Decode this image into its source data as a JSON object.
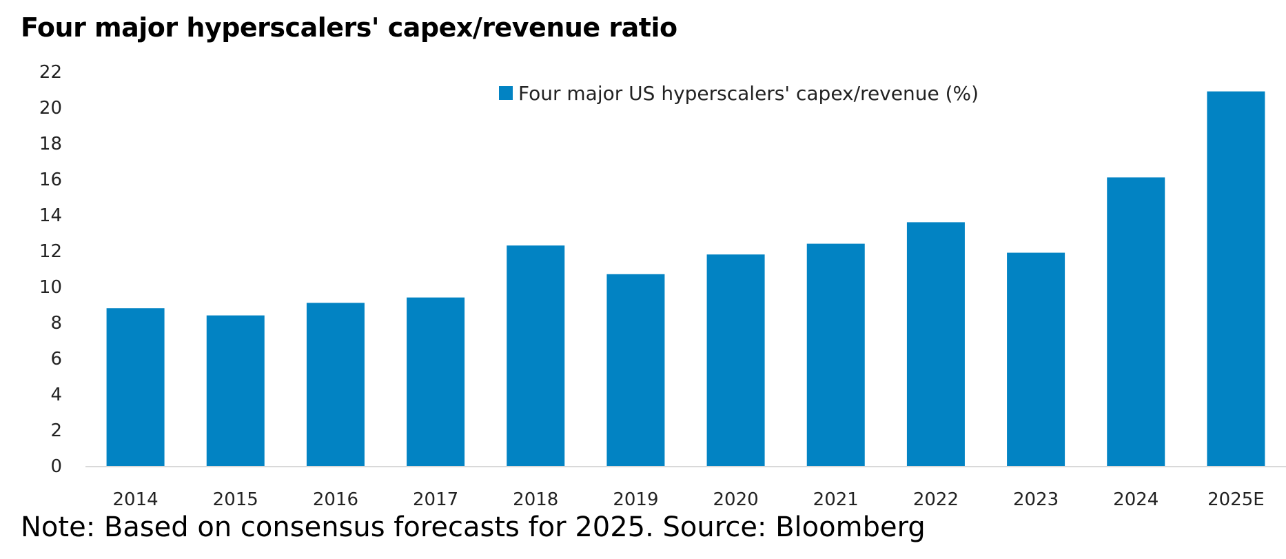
{
  "title": "Four major hyperscalers' capex/revenue ratio",
  "note": "Note: Based on consensus forecasts for 2025. Source: Bloomberg",
  "chart_data": {
    "type": "bar",
    "title": "Four major hyperscalers' capex/revenue ratio",
    "xlabel": "",
    "ylabel": "",
    "categories": [
      "2014",
      "2015",
      "2016",
      "2017",
      "2018",
      "2019",
      "2020",
      "2021",
      "2022",
      "2023",
      "2024",
      "2025E"
    ],
    "series": [
      {
        "name": "Four major US hyperscalers' capex/revenue (%)",
        "color": "#0283C3",
        "values": [
          8.8,
          8.4,
          9.1,
          9.4,
          12.3,
          10.7,
          11.8,
          12.4,
          13.6,
          11.9,
          16.1,
          20.9
        ]
      }
    ],
    "ylim": [
      0,
      22
    ],
    "yticks": [
      0,
      2,
      4,
      6,
      8,
      10,
      12,
      14,
      16,
      18,
      20,
      22
    ],
    "grid": false,
    "legend_position": "top-right"
  }
}
